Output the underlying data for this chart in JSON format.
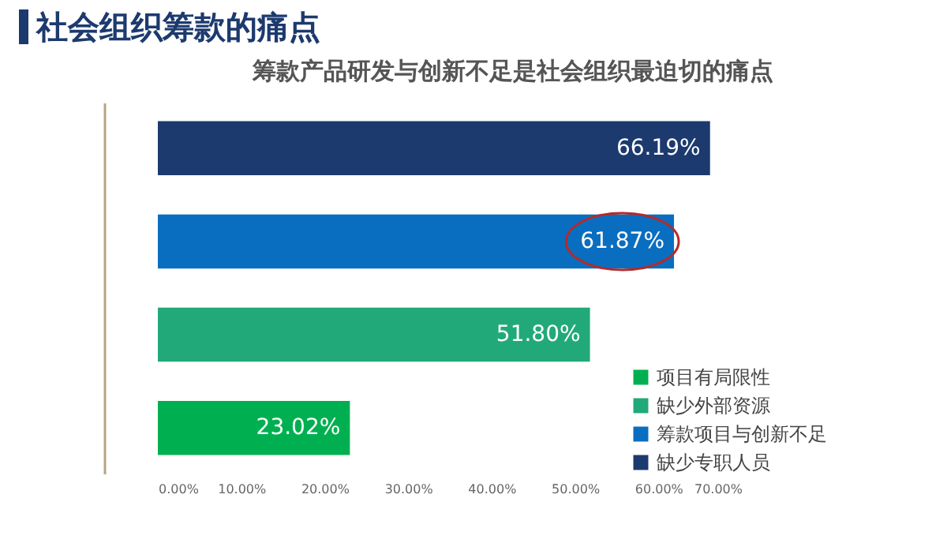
{
  "chart_data": {
    "type": "bar",
    "orientation": "horizontal",
    "title": "社会组织筹款的痛点",
    "subtitle": "筹款产品研发与创新不足是社会组织最迫切的痛点",
    "categories": [
      null,
      null,
      null,
      null
    ],
    "series": [
      {
        "name": "项目有局限性",
        "color": "#00b050",
        "values": [
          null,
          null,
          null,
          23.02
        ],
        "value_labels": [
          null,
          null,
          null,
          "23.02%"
        ]
      },
      {
        "name": "缺少外部资源",
        "color": "#22a97a",
        "values": [
          null,
          null,
          51.8,
          null
        ],
        "value_labels": [
          null,
          null,
          "51.80%",
          null
        ]
      },
      {
        "name": "筹款项目与创新不足",
        "color": "#0a6ec0",
        "values": [
          null,
          61.87,
          null,
          null
        ],
        "value_labels": [
          null,
          "61.87%",
          null,
          null
        ]
      },
      {
        "name": "缺少专职人员",
        "color": "#1c3a6e",
        "values": [
          66.19,
          null,
          null,
          null
        ],
        "value_labels": [
          "66.19%",
          null,
          null,
          null
        ]
      }
    ],
    "xlim": [
      0,
      70
    ],
    "xticks": [
      {
        "value": 0,
        "label": "0.00%"
      },
      {
        "value": 10,
        "label": "10.00%"
      },
      {
        "value": 20,
        "label": "20.00%"
      },
      {
        "value": 30,
        "label": "30.00%"
      },
      {
        "value": 40,
        "label": "40.00%"
      },
      {
        "value": 50,
        "label": "50.00%"
      },
      {
        "value": 60,
        "label": "60.00%"
      },
      {
        "value": 70,
        "label": "70.00%"
      }
    ],
    "stacked": true,
    "legend": "bottom right",
    "tick_labels": "x",
    "grid": false
  }
}
